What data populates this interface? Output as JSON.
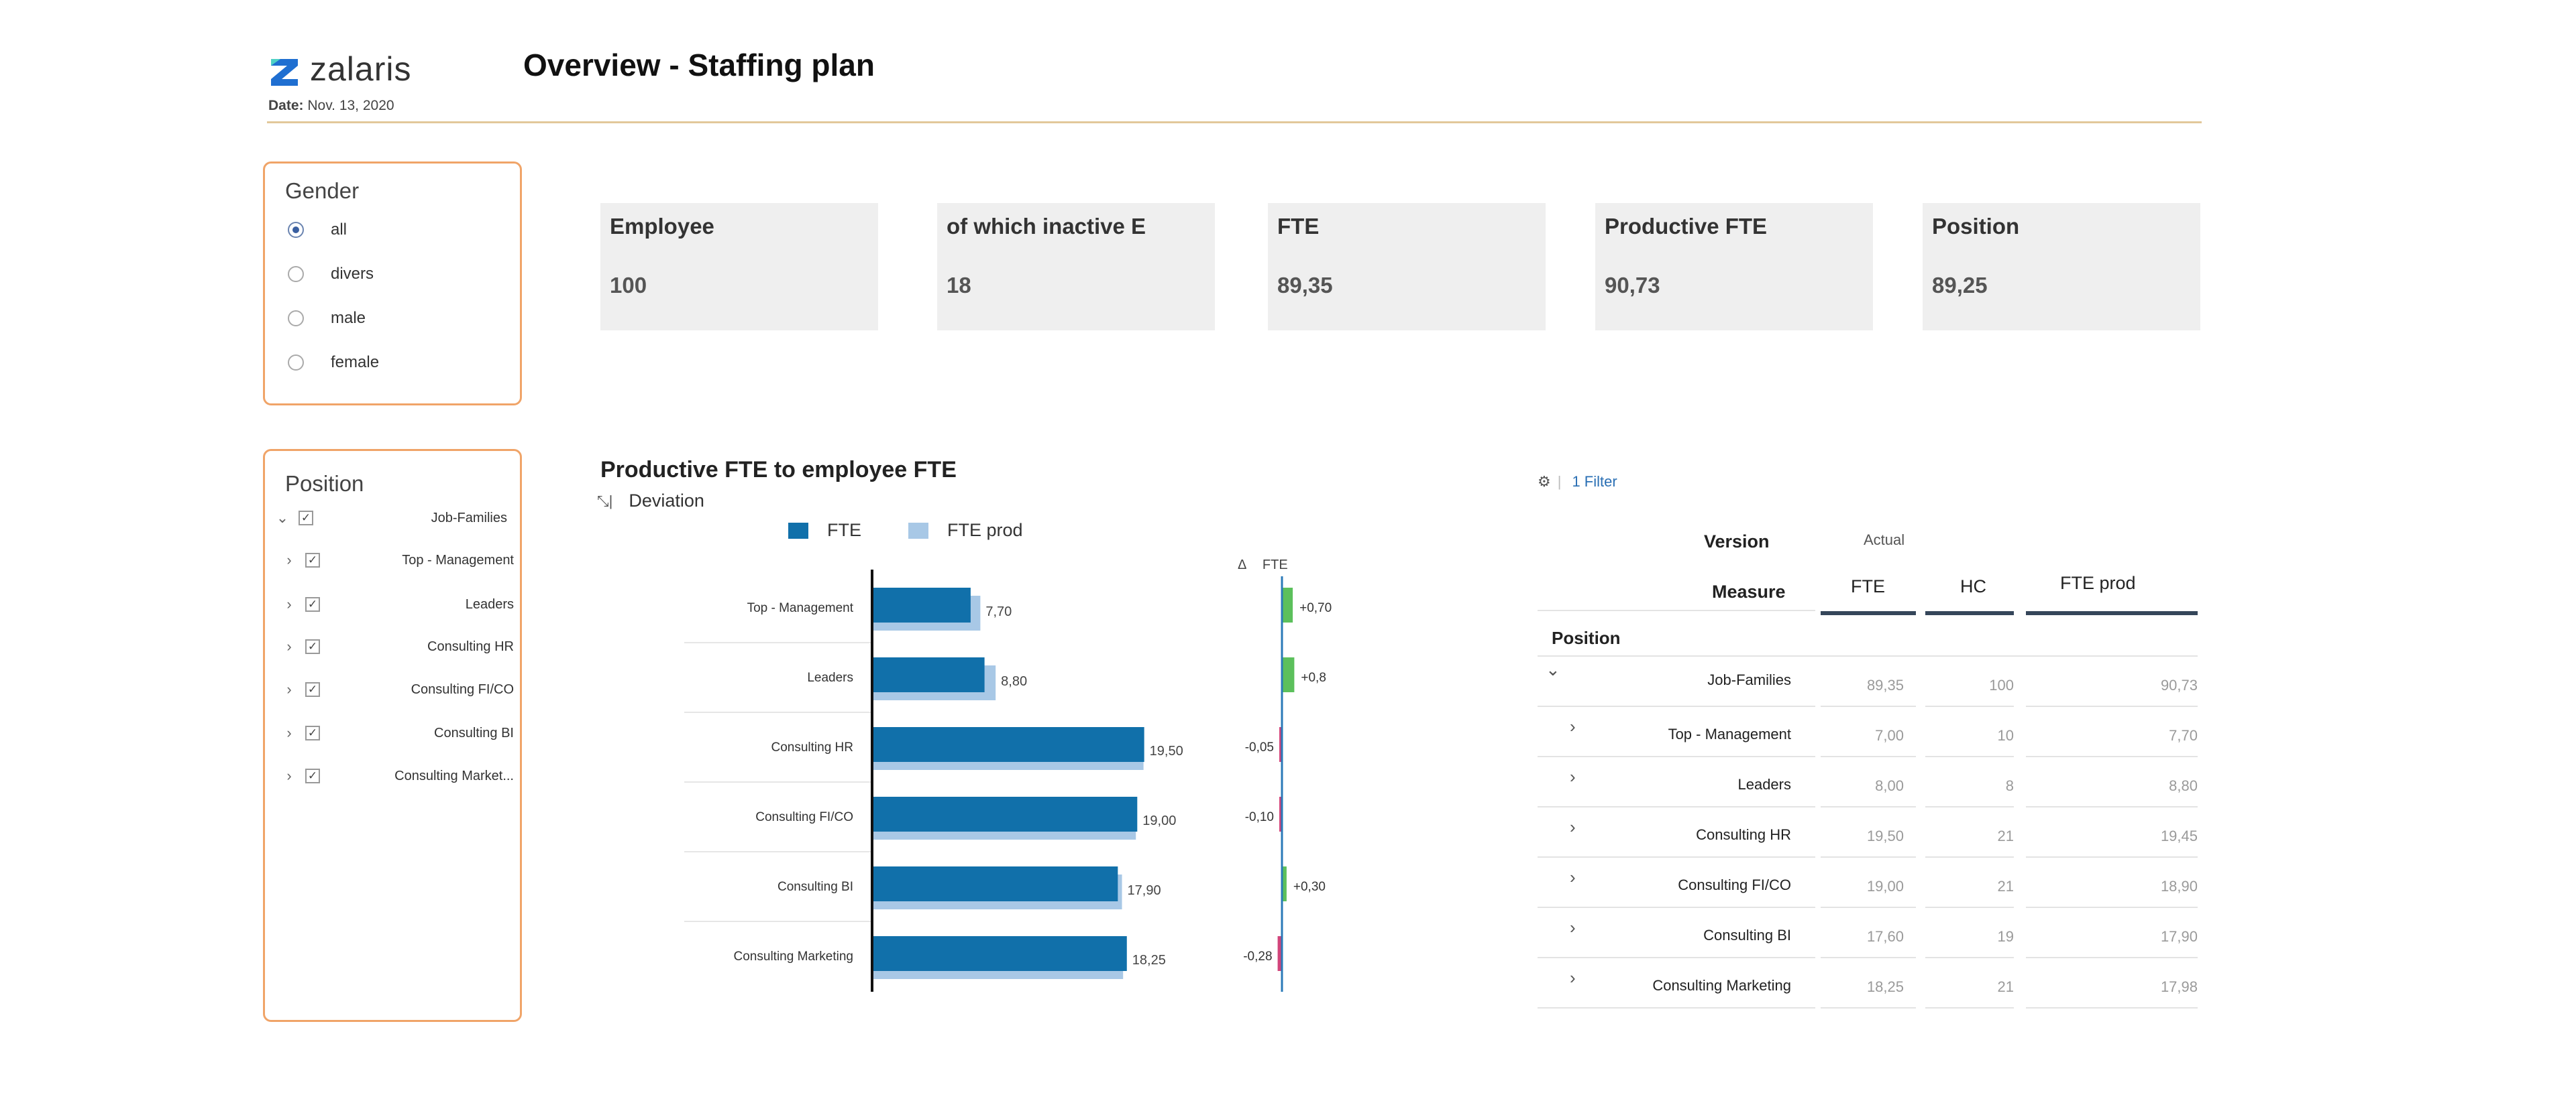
{
  "header": {
    "logo_text": "zalaris",
    "date_label": "Date:",
    "date_value": "Nov. 13, 2020",
    "title": "Overview - Staffing plan"
  },
  "gender_filter": {
    "title": "Gender",
    "options": [
      "all",
      "divers",
      "male",
      "female"
    ],
    "selected": "all"
  },
  "position_filter": {
    "title": "Position",
    "items": [
      {
        "label": "Job-Families",
        "expanded": true,
        "checked": true
      },
      {
        "label": "Top - Management",
        "expanded": false,
        "checked": true
      },
      {
        "label": "Leaders",
        "expanded": false,
        "checked": true
      },
      {
        "label": "Consulting HR",
        "expanded": false,
        "checked": true
      },
      {
        "label": "Consulting FI/CO",
        "expanded": false,
        "checked": true
      },
      {
        "label": "Consulting BI",
        "expanded": false,
        "checked": true
      },
      {
        "label": "Consulting Market...",
        "expanded": false,
        "checked": true
      }
    ]
  },
  "kpis": [
    {
      "label": "Employee",
      "value": "100"
    },
    {
      "label": "of which inactive E",
      "value": "18"
    },
    {
      "label": "FTE",
      "value": "89,35"
    },
    {
      "label": "Productive FTE",
      "value": "90,73"
    },
    {
      "label": "Position",
      "value": "89,25"
    }
  ],
  "chart": {
    "title": "Productive FTE to employee FTE",
    "deviation_label": "Deviation",
    "legend": [
      "FTE",
      "FTE prod"
    ],
    "delta_header": "Δ",
    "delta_col_label": "FTE",
    "colors": {
      "fte": "#1170aa",
      "fte_prod": "#a8c8e6",
      "pos": "#5cc05c",
      "neg": "#d0457b",
      "axis": "#2a7ab8"
    }
  },
  "chart_data": {
    "type": "bar",
    "orientation": "horizontal",
    "categories": [
      "Top - Management",
      "Leaders",
      "Consulting HR",
      "Consulting FI/CO",
      "Consulting BI",
      "Consulting Marketing"
    ],
    "series": [
      {
        "name": "FTE",
        "values": [
          7.0,
          8.0,
          19.5,
          19.0,
          17.6,
          18.25
        ]
      },
      {
        "name": "FTE prod",
        "values": [
          7.7,
          8.8,
          19.45,
          18.9,
          17.9,
          17.98
        ]
      }
    ],
    "data_labels": [
      "7,70",
      "8,80",
      "19,50",
      "19,00",
      "17,90",
      "18,25"
    ],
    "deviation": {
      "values": [
        0.7,
        0.8,
        -0.05,
        -0.1,
        0.3,
        -0.28
      ],
      "labels": [
        "+0,70",
        "+0,8",
        "-0,05",
        "-0,10",
        "+0,30",
        "-0,28"
      ]
    },
    "xlim": [
      0,
      22
    ]
  },
  "table": {
    "filter_label": "1 Filter",
    "version_label": "Version",
    "version_value": "Actual",
    "measure_label": "Measure",
    "columns": [
      "FTE",
      "HC",
      "FTE prod"
    ],
    "row_header": "Position",
    "rows": [
      {
        "label": "Job-Families",
        "fte": "89,35",
        "hc": "100",
        "fte_prod": "90,73",
        "expanded": true
      },
      {
        "label": "Top - Management",
        "fte": "7,00",
        "hc": "10",
        "fte_prod": "7,70",
        "expanded": false
      },
      {
        "label": "Leaders",
        "fte": "8,00",
        "hc": "8",
        "fte_prod": "8,80",
        "expanded": false
      },
      {
        "label": "Consulting HR",
        "fte": "19,50",
        "hc": "21",
        "fte_prod": "19,45",
        "expanded": false
      },
      {
        "label": "Consulting FI/CO",
        "fte": "19,00",
        "hc": "21",
        "fte_prod": "18,90",
        "expanded": false
      },
      {
        "label": "Consulting BI",
        "fte": "17,60",
        "hc": "19",
        "fte_prod": "17,90",
        "expanded": false
      },
      {
        "label": "Consulting Marketing",
        "fte": "18,25",
        "hc": "21",
        "fte_prod": "17,98",
        "expanded": false
      }
    ]
  }
}
